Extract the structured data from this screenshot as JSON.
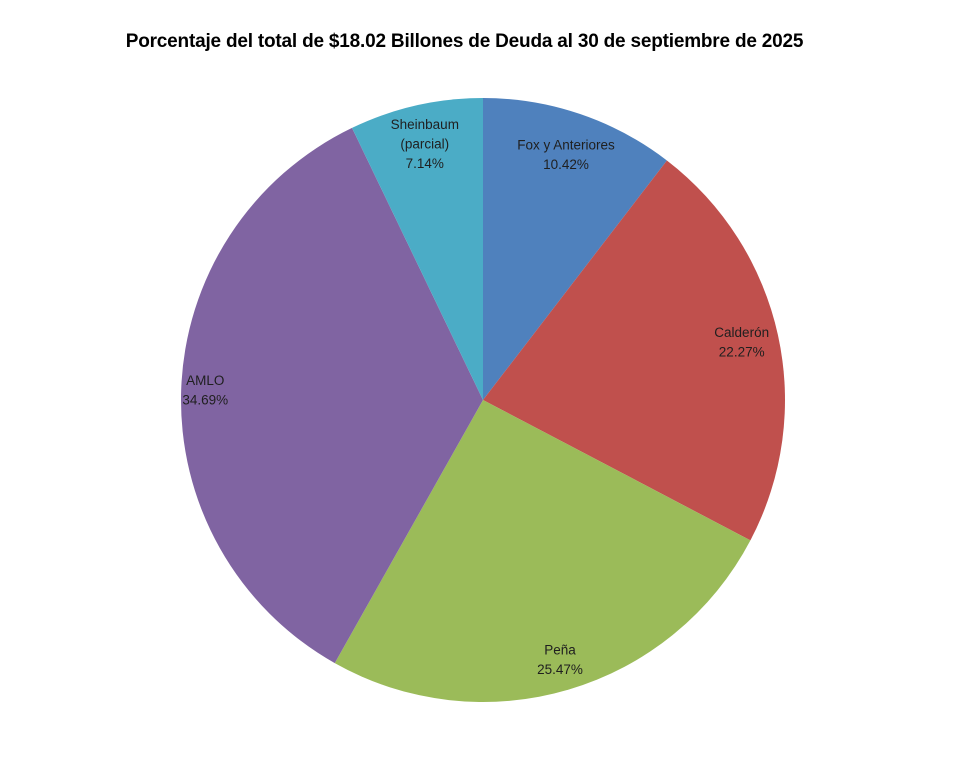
{
  "chart_data": {
    "type": "pie",
    "title": "Porcentaje del total de $18.02 Billones de Deuda al 30 de septiembre de 2025",
    "categories": [
      "Fox y Anteriores",
      "Calderón",
      "Peña",
      "AMLO",
      "Sheinbaum (parcial)"
    ],
    "values": [
      10.42,
      22.27,
      25.47,
      34.69,
      7.14
    ],
    "unit": "%",
    "legend_position": "none",
    "label_position": "inside",
    "background_color": "#ffffff",
    "title_color": "#000000",
    "label_text_color": "#1f1f1f",
    "slices": [
      {
        "label_lines": [
          "Fox y Anteriores"
        ],
        "pct_label": "10.42%",
        "value": 10.42,
        "color": "#4F81BD"
      },
      {
        "label_lines": [
          "Calderón"
        ],
        "pct_label": "22.27%",
        "value": 22.27,
        "color": "#C0504D"
      },
      {
        "label_lines": [
          "Peña"
        ],
        "pct_label": "25.47%",
        "value": 25.47,
        "color": "#9BBB59"
      },
      {
        "label_lines": [
          "AMLO"
        ],
        "pct_label": "34.69%",
        "value": 34.69,
        "color": "#8064A2"
      },
      {
        "label_lines": [
          "Sheinbaum",
          "(parcial)"
        ],
        "pct_label": "7.14%",
        "value": 7.14,
        "color": "#4BACC6"
      }
    ],
    "layout": {
      "start_angle_deg": 0,
      "clockwise": true,
      "label_distances": [
        0.855,
        0.877,
        0.9,
        0.92,
        0.867
      ]
    }
  }
}
